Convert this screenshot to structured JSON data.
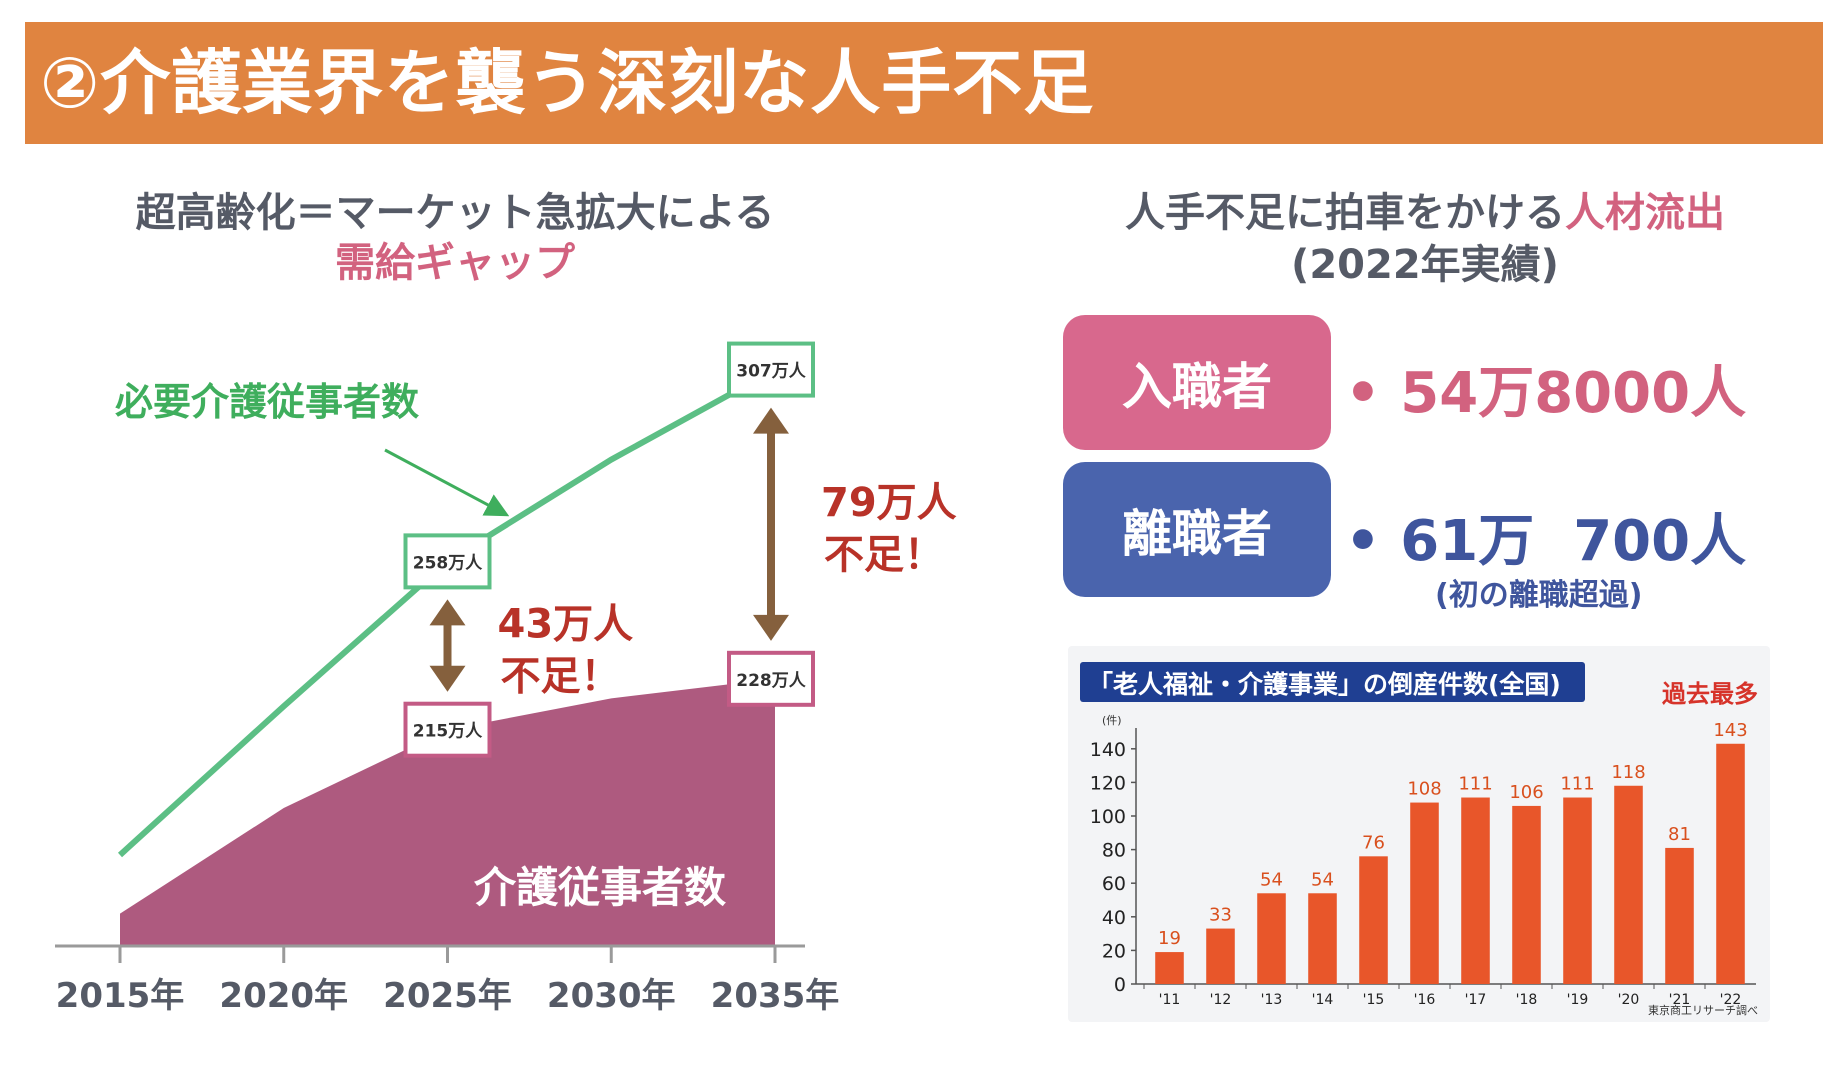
{
  "title": "②介護業界を襲う深刻な人手不足",
  "left_heading": {
    "line1": "超高齢化＝マーケット急拡大による",
    "line2": "需給ギャップ"
  },
  "right_heading": {
    "line1_a": "人手不足に拍車をかける",
    "line1_b": "人材流出",
    "line2": "(2022年実績)"
  },
  "entrants": {
    "label": "入職者",
    "value": "• 54万8000人"
  },
  "leavers": {
    "label": "離職者",
    "value": "• 61万  700人",
    "note": "(初の離職超過)"
  },
  "colors": {
    "header": "#e08440",
    "pink": "#d2627f",
    "blue": "#4a64ad",
    "green": "#5cbf85",
    "maroon": "#ae5a7f",
    "brown": "#85603d",
    "red": "#b83228",
    "bar": "#e8562a"
  },
  "chart_data": [
    {
      "type": "area",
      "x": [
        "2015年",
        "2020年",
        "2025年",
        "2030年",
        "2035年"
      ],
      "series": [
        {
          "name": "必要介護従事者数",
          "style": "line",
          "x": [
            2015,
            2020,
            2025,
            2030,
            2035
          ],
          "values": [
            183,
            221,
            258,
            284,
            307
          ]
        },
        {
          "name": "介護従事者数",
          "style": "area",
          "x": [
            2015,
            2020,
            2025,
            2030,
            2035
          ],
          "values": [
            168,
            195,
            215,
            223,
            228
          ]
        }
      ],
      "point_labels": [
        {
          "text": "307万人",
          "x": 2035,
          "y": 307,
          "series": "必要介護従事者数"
        },
        {
          "text": "258万人",
          "x": 2025,
          "y": 258,
          "series": "必要介護従事者数"
        },
        {
          "text": "215万人",
          "x": 2025,
          "y": 215,
          "series": "介護従事者数"
        },
        {
          "text": "228万人",
          "x": 2035,
          "y": 228,
          "series": "介護従事者数"
        }
      ],
      "gaps": [
        {
          "x": 2025,
          "from": 215,
          "to": 258,
          "line1": "43万人",
          "line2": "不足！"
        },
        {
          "x": 2035,
          "from": 228,
          "to": 307,
          "line1": "79万人",
          "line2": "不足！"
        }
      ],
      "xlim": [
        2015,
        2035
      ],
      "ylim": [
        160,
        312
      ]
    },
    {
      "type": "bar",
      "title": "「老人福祉・介護事業」の倒産件数",
      "title_suffix": "(全国)",
      "categories": [
        "'11",
        "'12",
        "'13",
        "'14",
        "'15",
        "'16",
        "'17",
        "'18",
        "'19",
        "'20",
        "'21",
        "'22"
      ],
      "values": [
        19,
        33,
        54,
        54,
        76,
        108,
        111,
        106,
        111,
        118,
        81,
        143
      ],
      "yunit": "(件)",
      "yticks": [
        0,
        20,
        40,
        60,
        80,
        100,
        120,
        140
      ],
      "ylim": [
        0,
        150
      ],
      "callout": "過去最多",
      "source": "東京商工リサーチ調べ"
    }
  ]
}
